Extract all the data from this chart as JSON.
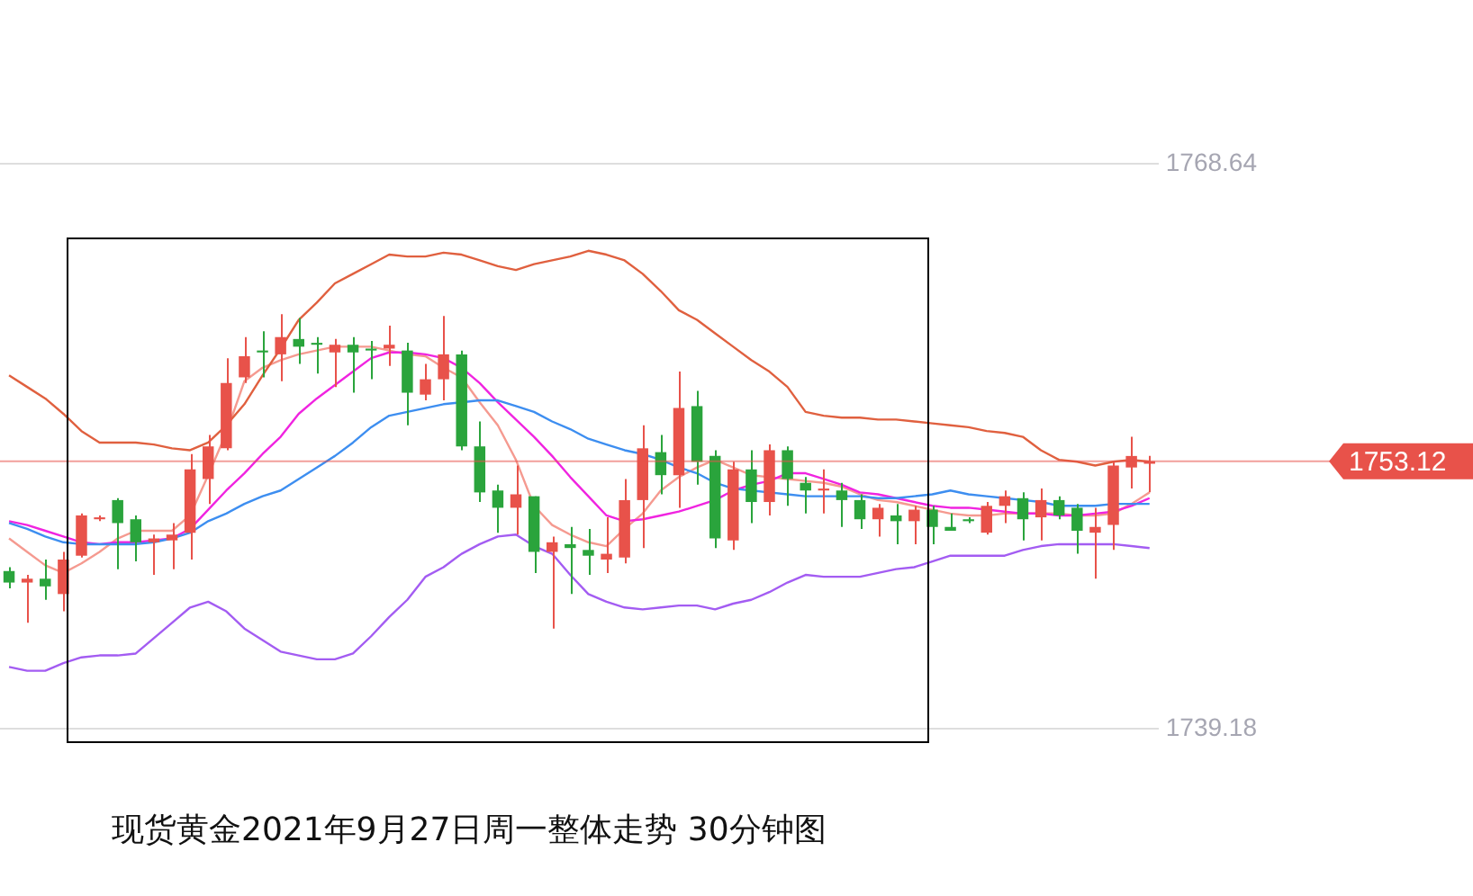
{
  "chart_data": {
    "type": "candlestick",
    "title": "现货黄金2021年9月27日周一整体走势 30分钟图",
    "categories": [
      null,
      null,
      null,
      null,
      null,
      null,
      null,
      null,
      null,
      null,
      null,
      null,
      null,
      null,
      null,
      null,
      null,
      null,
      null,
      null,
      null,
      null,
      null,
      null,
      null,
      null,
      null,
      null,
      null,
      null,
      null,
      null,
      null,
      null,
      null,
      null,
      null,
      null,
      null,
      null,
      null,
      null,
      null,
      null,
      null,
      null,
      null,
      null,
      null,
      null,
      null,
      null,
      null,
      null,
      null,
      null,
      null,
      null,
      null,
      null,
      null,
      null,
      null,
      null
    ],
    "ohlc": [
      [
        1747.4,
        1747.6,
        1746.5,
        1746.8
      ],
      [
        1746.8,
        1747.2,
        1744.7,
        1747.0
      ],
      [
        1747.0,
        1748.0,
        1745.9,
        1746.6
      ],
      [
        1746.2,
        1748.4,
        1745.3,
        1748.0
      ],
      [
        1748.2,
        1750.4,
        1748.1,
        1750.3
      ],
      [
        1750.1,
        1750.3,
        1750.0,
        1750.2
      ],
      [
        1751.1,
        1751.2,
        1747.5,
        1749.9
      ],
      [
        1750.1,
        1750.3,
        1747.9,
        1748.9
      ],
      [
        1748.9,
        1749.3,
        1747.2,
        1749.1
      ],
      [
        1749.0,
        1749.9,
        1747.5,
        1749.3
      ],
      [
        1749.4,
        1753.5,
        1748.0,
        1752.7
      ],
      [
        1752.2,
        1754.5,
        1750.9,
        1753.9
      ],
      [
        1753.8,
        1758.5,
        1753.7,
        1757.2
      ],
      [
        1757.5,
        1759.6,
        1757.2,
        1758.6
      ],
      [
        1758.9,
        1759.9,
        1757.5,
        1758.8
      ],
      [
        1758.7,
        1760.8,
        1757.3,
        1759.6
      ],
      [
        1759.5,
        1760.6,
        1758.2,
        1759.1
      ],
      [
        1759.3,
        1759.6,
        1757.7,
        1759.2
      ],
      [
        1758.8,
        1759.5,
        1757.0,
        1759.2
      ],
      [
        1759.2,
        1759.6,
        1756.7,
        1758.8
      ],
      [
        1759.0,
        1759.4,
        1757.4,
        1758.9
      ],
      [
        1759.0,
        1760.2,
        1758.1,
        1759.2
      ],
      [
        1758.9,
        1759.3,
        1755.0,
        1756.7
      ],
      [
        1756.6,
        1758.2,
        1756.3,
        1757.4
      ],
      [
        1757.4,
        1760.7,
        1756.3,
        1758.7
      ],
      [
        1758.7,
        1758.9,
        1753.7,
        1753.9
      ],
      [
        1753.9,
        1755.2,
        1751.0,
        1751.5
      ],
      [
        1751.6,
        1751.9,
        1749.4,
        1750.7
      ],
      [
        1750.7,
        1752.9,
        1749.3,
        1751.4
      ],
      [
        1751.3,
        1751.3,
        1747.3,
        1748.4
      ],
      [
        1748.4,
        1749.2,
        1744.4,
        1748.9
      ],
      [
        1748.8,
        1749.7,
        1746.2,
        1748.6
      ],
      [
        1748.5,
        1749.6,
        1747.2,
        1748.2
      ],
      [
        1748.0,
        1750.2,
        1747.3,
        1748.3
      ],
      [
        1748.1,
        1752.2,
        1747.8,
        1751.1
      ],
      [
        1751.1,
        1755.0,
        1748.6,
        1753.8
      ],
      [
        1753.6,
        1754.5,
        1751.4,
        1752.4
      ],
      [
        1752.4,
        1757.8,
        1750.7,
        1755.9
      ],
      [
        1756.0,
        1756.8,
        1751.9,
        1753.1
      ],
      [
        1753.4,
        1753.7,
        1748.6,
        1749.1
      ],
      [
        1749.0,
        1753.1,
        1748.5,
        1752.7
      ],
      [
        1752.7,
        1753.7,
        1749.9,
        1751.0
      ],
      [
        1751.0,
        1754.0,
        1750.3,
        1753.7
      ],
      [
        1753.7,
        1753.9,
        1750.8,
        1752.2
      ],
      [
        1752.0,
        1752.3,
        1750.4,
        1751.6
      ],
      [
        1751.6,
        1752.7,
        1750.4,
        1751.7
      ],
      [
        1751.6,
        1752.0,
        1749.7,
        1751.1
      ],
      [
        1751.1,
        1751.4,
        1749.6,
        1750.1
      ],
      [
        1750.1,
        1750.9,
        1749.2,
        1750.7
      ],
      [
        1750.3,
        1750.9,
        1748.8,
        1750.0
      ],
      [
        1750.0,
        1750.8,
        1748.8,
        1750.6
      ],
      [
        1750.6,
        1750.8,
        1748.8,
        1749.7
      ],
      [
        1749.7,
        1750.4,
        1749.5,
        1749.5
      ],
      [
        1750.1,
        1750.2,
        1749.9,
        1750.0
      ],
      [
        1749.4,
        1751.0,
        1749.3,
        1750.8
      ],
      [
        1750.8,
        1751.6,
        1749.9,
        1751.3
      ],
      [
        1751.2,
        1751.5,
        1749.0,
        1750.1
      ],
      [
        1750.2,
        1751.7,
        1749.0,
        1751.1
      ],
      [
        1751.1,
        1751.3,
        1750.1,
        1750.3
      ],
      [
        1750.7,
        1750.9,
        1748.3,
        1749.5
      ],
      [
        1749.4,
        1750.7,
        1747.0,
        1749.7
      ],
      [
        1749.8,
        1753.1,
        1748.5,
        1752.9
      ],
      [
        1752.8,
        1754.4,
        1751.7,
        1753.4
      ],
      [
        1753.0,
        1753.4,
        1751.5,
        1753.12
      ]
    ],
    "colors": [
      "#2aa43c",
      "#e8524a",
      "#2aa43c",
      "#e8524a",
      "#e8524a",
      "#e8524a",
      "#2aa43c",
      "#2aa43c",
      "#e8524a",
      "#e8524a",
      "#e8524a",
      "#e8524a",
      "#e8524a",
      "#e8524a",
      "#2aa43c",
      "#e8524a",
      "#2aa43c",
      "#2aa43c",
      "#e8524a",
      "#2aa43c",
      "#2aa43c",
      "#e8524a",
      "#2aa43c",
      "#e8524a",
      "#e8524a",
      "#2aa43c",
      "#2aa43c",
      "#2aa43c",
      "#e8524a",
      "#2aa43c",
      "#e8524a",
      "#2aa43c",
      "#2aa43c",
      "#e8524a",
      "#e8524a",
      "#e8524a",
      "#2aa43c",
      "#e8524a",
      "#2aa43c",
      "#2aa43c",
      "#e8524a",
      "#2aa43c",
      "#e8524a",
      "#2aa43c",
      "#2aa43c",
      "#e8524a",
      "#2aa43c",
      "#2aa43c",
      "#e8524a",
      "#2aa43c",
      "#e8524a",
      "#2aa43c",
      "#2aa43c",
      "#2aa43c",
      "#e8524a",
      "#e8524a",
      "#2aa43c",
      "#e8524a",
      "#2aa43c",
      "#2aa43c",
      "#e8524a",
      "#e8524a",
      "#e8524a",
      "#e8524a"
    ],
    "series": [
      {
        "type": "line",
        "color": "#e0603f",
        "values": [
          1757.6,
          1757.0,
          1756.4,
          1755.6,
          1754.7,
          1754.1,
          1754.1,
          1754.1,
          1754.0,
          1753.8,
          1753.7,
          1754.1,
          1755.0,
          1756.1,
          1757.6,
          1759.0,
          1760.5,
          1761.4,
          1762.4,
          1762.9,
          1763.4,
          1763.9,
          1763.8,
          1763.8,
          1764.0,
          1763.9,
          1763.6,
          1763.3,
          1763.1,
          1763.4,
          1763.6,
          1763.8,
          1764.1,
          1763.9,
          1763.6,
          1762.9,
          1762.0,
          1761.0,
          1760.5,
          1759.8,
          1759.1,
          1758.4,
          1757.8,
          1757.0,
          1755.7,
          1755.5,
          1755.4,
          1755.4,
          1755.3,
          1755.3,
          1755.2,
          1755.1,
          1755.0,
          1754.9,
          1754.7,
          1754.6,
          1754.4,
          1753.7,
          1753.2,
          1753.1,
          1752.9,
          1753.1,
          1753.2,
          1753.1
        ]
      },
      {
        "type": "line",
        "color": "#a35cf2",
        "values": [
          1742.4,
          1742.2,
          1742.2,
          1742.6,
          1742.9,
          1743.0,
          1743.0,
          1743.1,
          1743.9,
          1744.7,
          1745.5,
          1745.8,
          1745.3,
          1744.4,
          1743.8,
          1743.2,
          1743.0,
          1742.8,
          1742.8,
          1743.1,
          1744.0,
          1745.0,
          1745.9,
          1747.1,
          1747.6,
          1748.3,
          1748.8,
          1749.2,
          1749.3,
          1748.7,
          1748.3,
          1747.2,
          1746.2,
          1745.8,
          1745.5,
          1745.4,
          1745.5,
          1745.6,
          1745.6,
          1745.4,
          1745.7,
          1745.9,
          1746.3,
          1746.8,
          1747.2,
          1747.1,
          1747.1,
          1747.1,
          1747.3,
          1747.5,
          1747.6,
          1747.9,
          1748.2,
          1748.2,
          1748.2,
          1748.2,
          1748.5,
          1748.7,
          1748.8,
          1748.8,
          1748.8,
          1748.8,
          1748.7,
          1748.6
        ]
      },
      {
        "type": "line",
        "color": "#3d8ef0",
        "values": [
          1749.9,
          1749.6,
          1749.2,
          1748.9,
          1748.8,
          1748.8,
          1748.8,
          1748.8,
          1748.9,
          1749.1,
          1749.4,
          1750.0,
          1750.4,
          1750.9,
          1751.3,
          1751.6,
          1752.2,
          1752.8,
          1753.4,
          1754.1,
          1754.9,
          1755.5,
          1755.7,
          1755.9,
          1756.1,
          1756.2,
          1756.3,
          1756.3,
          1756.0,
          1755.7,
          1755.2,
          1754.8,
          1754.3,
          1754.0,
          1753.7,
          1753.5,
          1753.2,
          1752.8,
          1752.5,
          1752.0,
          1751.7,
          1751.6,
          1751.5,
          1751.4,
          1751.3,
          1751.3,
          1751.3,
          1751.3,
          1751.2,
          1751.2,
          1751.3,
          1751.4,
          1751.6,
          1751.4,
          1751.3,
          1751.2,
          1751.1,
          1751.0,
          1750.8,
          1750.8,
          1750.8,
          1750.9,
          1750.9,
          1750.9
        ]
      },
      {
        "type": "line",
        "color": "#f024e0",
        "values": [
          1750.0,
          1749.8,
          1749.5,
          1749.2,
          1748.9,
          1748.8,
          1748.9,
          1748.9,
          1749.0,
          1749.1,
          1749.6,
          1750.6,
          1751.6,
          1752.5,
          1753.5,
          1754.4,
          1755.6,
          1756.4,
          1757.1,
          1757.8,
          1758.5,
          1758.8,
          1758.8,
          1758.7,
          1758.5,
          1758.0,
          1757.2,
          1756.2,
          1755.3,
          1754.4,
          1753.4,
          1752.3,
          1751.3,
          1750.3,
          1750.0,
          1750.1,
          1750.3,
          1750.5,
          1750.8,
          1751.1,
          1751.6,
          1751.9,
          1752.1,
          1752.5,
          1752.5,
          1752.2,
          1751.9,
          1751.5,
          1751.4,
          1751.2,
          1751.0,
          1750.8,
          1750.7,
          1750.7,
          1750.6,
          1750.5,
          1750.4,
          1750.4,
          1750.3,
          1750.3,
          1750.4,
          1750.5,
          1750.8,
          1751.2
        ]
      },
      {
        "type": "line",
        "color": "#f59a90",
        "values": [
          1749.1,
          1748.4,
          1747.7,
          1747.3,
          1747.8,
          1748.4,
          1749.1,
          1749.5,
          1749.5,
          1749.5,
          1750.3,
          1752.4,
          1754.6,
          1757.3,
          1758.0,
          1758.4,
          1758.7,
          1758.9,
          1759.1,
          1759.1,
          1759.1,
          1758.9,
          1758.7,
          1758.6,
          1758.0,
          1757.5,
          1756.2,
          1755.0,
          1753.2,
          1750.8,
          1749.8,
          1749.3,
          1748.9,
          1748.7,
          1749.6,
          1750.4,
          1751.6,
          1752.3,
          1752.8,
          1753.2,
          1752.8,
          1752.4,
          1752.3,
          1752.2,
          1752.1,
          1752.0,
          1751.8,
          1751.4,
          1751.1,
          1751.0,
          1750.8,
          1750.6,
          1750.4,
          1750.3,
          1750.3,
          1750.4,
          1750.4,
          1750.4,
          1750.4,
          1750.3,
          1750.3,
          1750.4,
          1750.9,
          1751.5
        ]
      }
    ],
    "ylim": [
      1739.18,
      1768.64
    ],
    "yticks": [
      1768.64,
      1739.18
    ],
    "grid": "y",
    "tick_labels": "y",
    "marker": "none",
    "ref_lines": [
      {
        "axis": "y",
        "value": 1753.12,
        "label": "1753.12",
        "color": "#e8524a"
      }
    ]
  }
}
